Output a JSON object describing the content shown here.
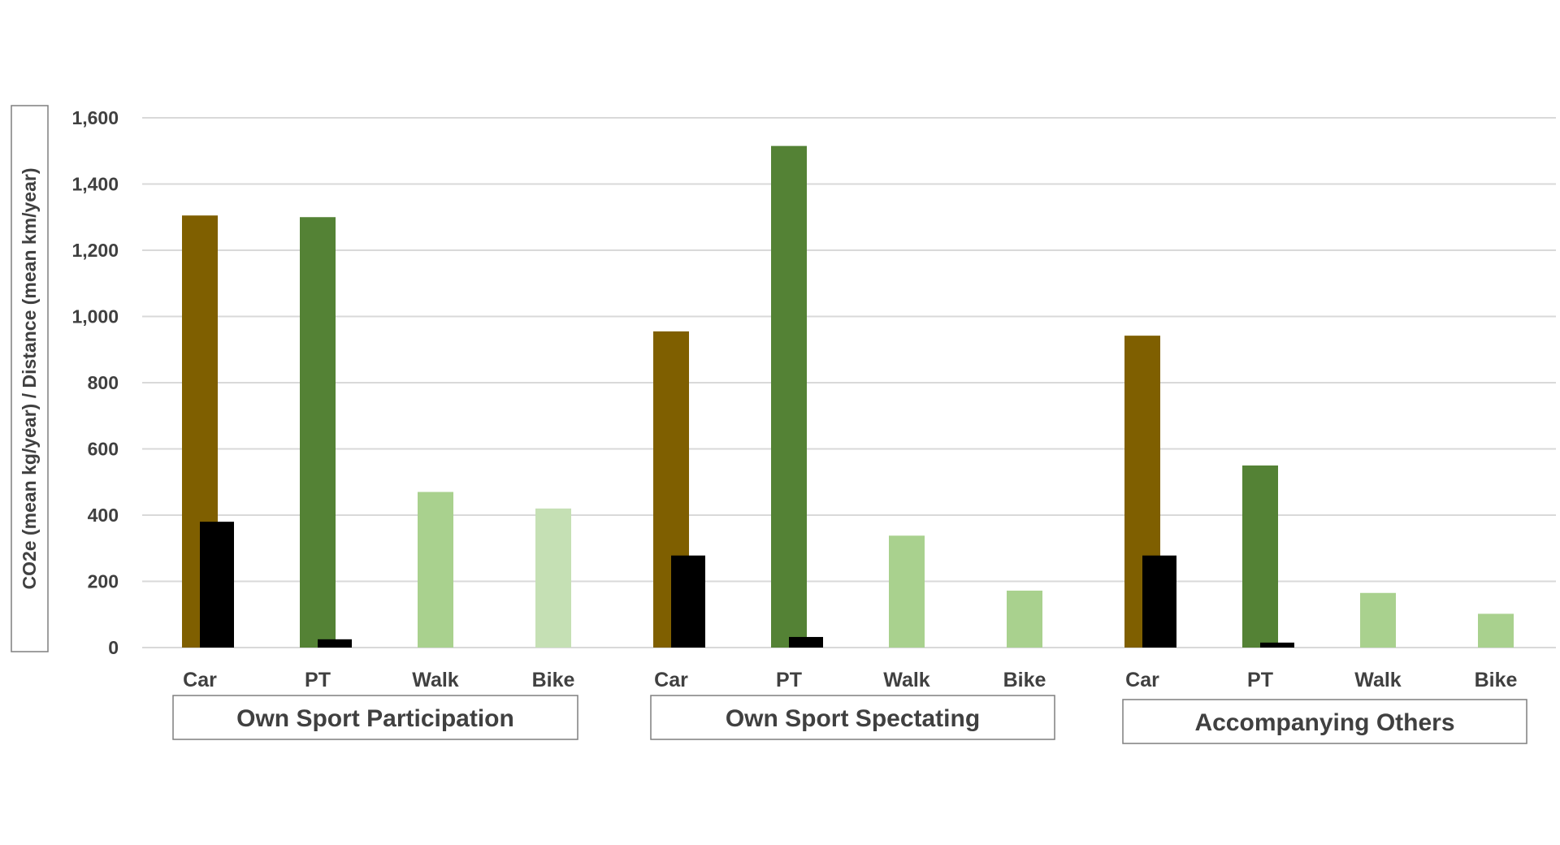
{
  "chart_data": {
    "type": "bar",
    "ylabel": "CO2e (mean kg/year)  /  Distance (mean km/year)",
    "ylim": [
      0,
      1600
    ],
    "yticks": [
      0,
      200,
      400,
      600,
      800,
      1000,
      1200,
      1400,
      1600
    ],
    "ytick_labels": [
      "0",
      "200",
      "400",
      "600",
      "800",
      "1,000",
      "1,200",
      "1,400",
      "1,600"
    ],
    "grid": true,
    "groups": [
      {
        "name": "Own Sport Participation",
        "categories": [
          "Car",
          "PT",
          "Walk",
          "Bike"
        ],
        "distance": [
          1305,
          1300,
          470,
          420
        ],
        "co2e": [
          380,
          25,
          0,
          0
        ]
      },
      {
        "name": "Own Sport Spectating",
        "categories": [
          "Car",
          "PT",
          "Walk",
          "Bike"
        ],
        "distance": [
          955,
          1515,
          338,
          172
        ],
        "co2e": [
          278,
          32,
          0,
          0
        ]
      },
      {
        "name": "Accompanying Others",
        "categories": [
          "Car",
          "PT",
          "Walk",
          "Bike"
        ],
        "distance": [
          942,
          550,
          165,
          102
        ],
        "co2e": [
          278,
          15,
          0,
          0
        ]
      }
    ],
    "colors": {
      "Car": "#7f5f00",
      "PT": "#548235",
      "Walk": "#a9d18e",
      "Bike": "#c5e0b4",
      "Bike_accompanying": "#a9d18e",
      "co2e": "#000000",
      "grid": "#d9d9d9",
      "frame": "#7f7f7f"
    }
  }
}
